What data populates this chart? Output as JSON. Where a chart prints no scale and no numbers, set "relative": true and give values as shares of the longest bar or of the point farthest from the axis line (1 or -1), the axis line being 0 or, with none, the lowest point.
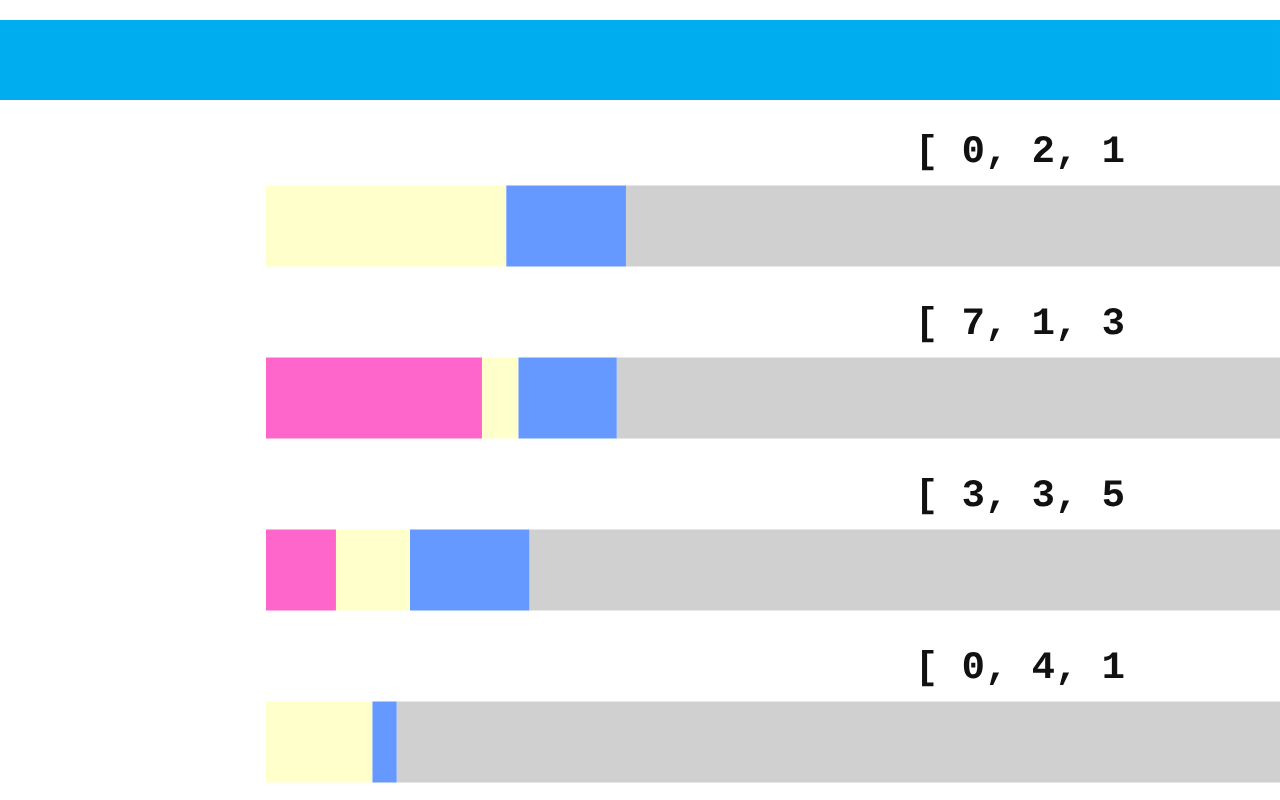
{
  "chart_data": {
    "type": "bar",
    "orientation": "horizontal",
    "stacked": true,
    "relative": true,
    "categories": [
      null,
      null,
      null,
      null
    ],
    "series": [
      {
        "color": "#ff66cc",
        "values": [
          0,
          0.213,
          0.069,
          0
        ]
      },
      {
        "color": "#ffffcc",
        "values": [
          0.237,
          0.036,
          0.073,
          0.105
        ]
      },
      {
        "color": "#6699ff",
        "values": [
          0.118,
          0.097,
          0.118,
          0.024
        ]
      },
      {
        "color": "#d0d0d0",
        "values": [
          0.645,
          0.654,
          0.74,
          0.871
        ]
      }
    ],
    "annotations": [
      "[ 0, 2, 1",
      "[ 7, 1, 3",
      "[ 3, 3, 5",
      "[ 0, 4, 1"
    ]
  }
}
